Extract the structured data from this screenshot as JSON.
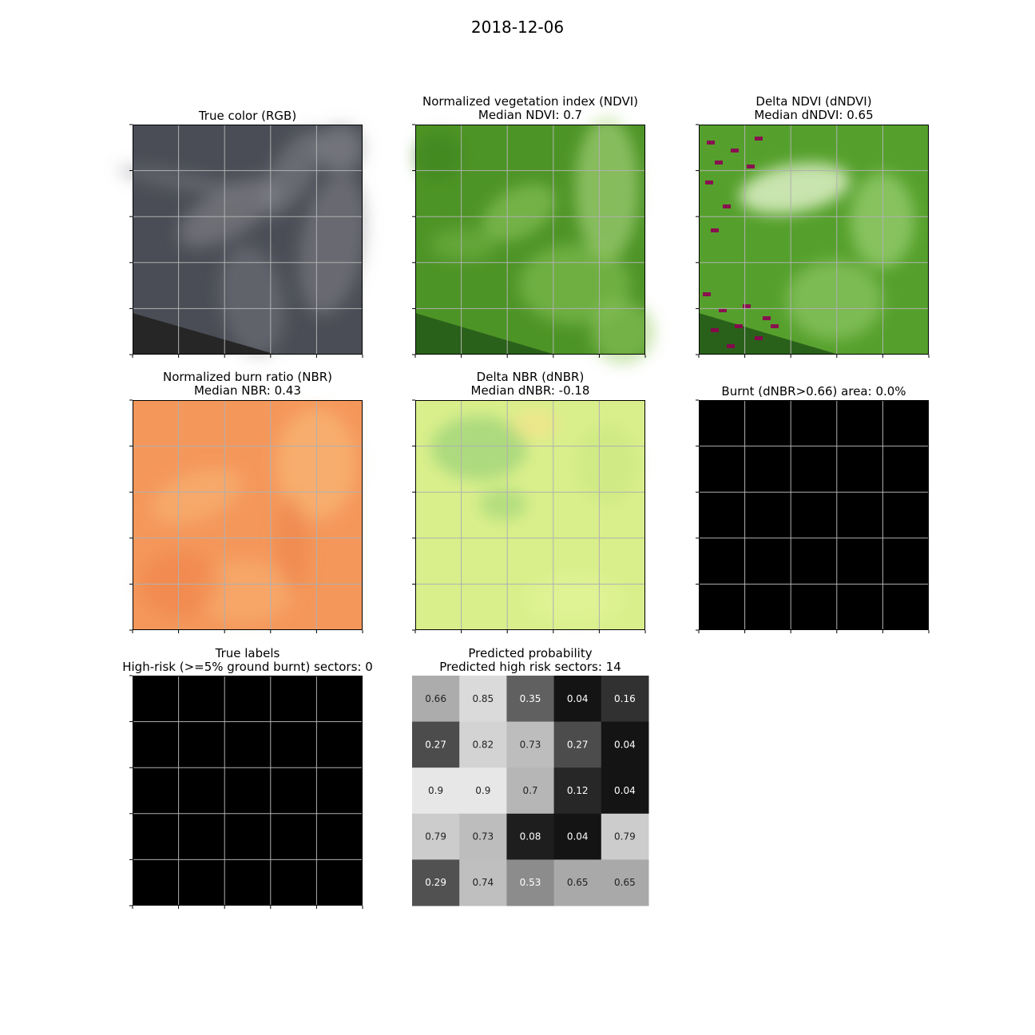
{
  "figure": {
    "title": "2018-12-06"
  },
  "panels": [
    {
      "id": "rgb",
      "title_line1": "True color (RGB)",
      "title_line2": "",
      "kind": "image",
      "style": "rgb"
    },
    {
      "id": "ndvi",
      "title_line1": "Normalized vegetation index (NDVI)",
      "title_line2": "Median NDVI: 0.7",
      "kind": "image",
      "style": "ndvi"
    },
    {
      "id": "dndvi",
      "title_line1": "Delta NDVI (dNDVI)",
      "title_line2": "Median dNDVI: 0.65",
      "kind": "image",
      "style": "dndvi"
    },
    {
      "id": "nbr",
      "title_line1": "Normalized burn ratio (NBR)",
      "title_line2": "Median NBR: 0.43",
      "kind": "image",
      "style": "nbr"
    },
    {
      "id": "dnbr",
      "title_line1": "Delta NBR (dNBR)",
      "title_line2": "Median dNBR: -0.18",
      "kind": "image",
      "style": "dnbr"
    },
    {
      "id": "burnt",
      "title_line1": "Burnt (dNBR>0.66) area: 0.0%",
      "title_line2": "",
      "kind": "image",
      "style": "black"
    },
    {
      "id": "labels",
      "title_line1": "True labels",
      "title_line2": "High-risk (>=5% ground burnt) sectors: 0",
      "kind": "image",
      "style": "black"
    },
    {
      "id": "prob",
      "title_line1": "Predicted probability",
      "title_line2": "Predicted high risk sectors: 14",
      "kind": "heatmap"
    }
  ],
  "chart_data": [
    {
      "type": "heatmap",
      "name": "Predicted probability",
      "subtitle": "Predicted high risk sectors: 14",
      "rows": 5,
      "cols": 5,
      "colormap": "gray",
      "vmin": 0,
      "vmax": 1,
      "values": [
        [
          0.66,
          0.85,
          0.35,
          0.04,
          0.16
        ],
        [
          0.27,
          0.82,
          0.73,
          0.27,
          0.04
        ],
        [
          0.9,
          0.9,
          0.7,
          0.12,
          0.04
        ],
        [
          0.79,
          0.73,
          0.08,
          0.04,
          0.79
        ],
        [
          0.29,
          0.74,
          0.53,
          0.65,
          0.65
        ]
      ],
      "labels": [
        [
          "0.66",
          "0.85",
          "0.35",
          "0.04",
          "0.16"
        ],
        [
          "0.27",
          "0.82",
          "0.73",
          "0.27",
          "0.04"
        ],
        [
          "0.9",
          "0.9",
          "0.7",
          "0.12",
          "0.04"
        ],
        [
          "0.79",
          "0.73",
          "0.08",
          "0.04",
          "0.79"
        ],
        [
          "0.29",
          "0.74",
          "0.53",
          "0.65",
          "0.65"
        ]
      ]
    },
    {
      "type": "heatmap",
      "name": "True labels",
      "rows": 5,
      "cols": 5,
      "value_all_cells": 0,
      "grid": true
    },
    {
      "type": "heatmap",
      "name": "Burnt (dNBR>0.66) area: 0.0%",
      "rows": 5,
      "cols": 5,
      "value_all_cells": 0,
      "grid": true
    }
  ],
  "colors": {
    "rgb_base": "#4a4d55",
    "rgb_dark": "#262626",
    "ndvi_base": "#4d9426",
    "ndvi_dark": "#2a611a",
    "ndvi_light": "#b7df8a",
    "dndvi_burn": "#8e0152",
    "nbr_base": "#f4975a",
    "nbr_light": "#fbc482",
    "dnbr_base": "#d9ef8b",
    "dnbr_green": "#8fcd74",
    "grid": "#b0b0b0"
  }
}
